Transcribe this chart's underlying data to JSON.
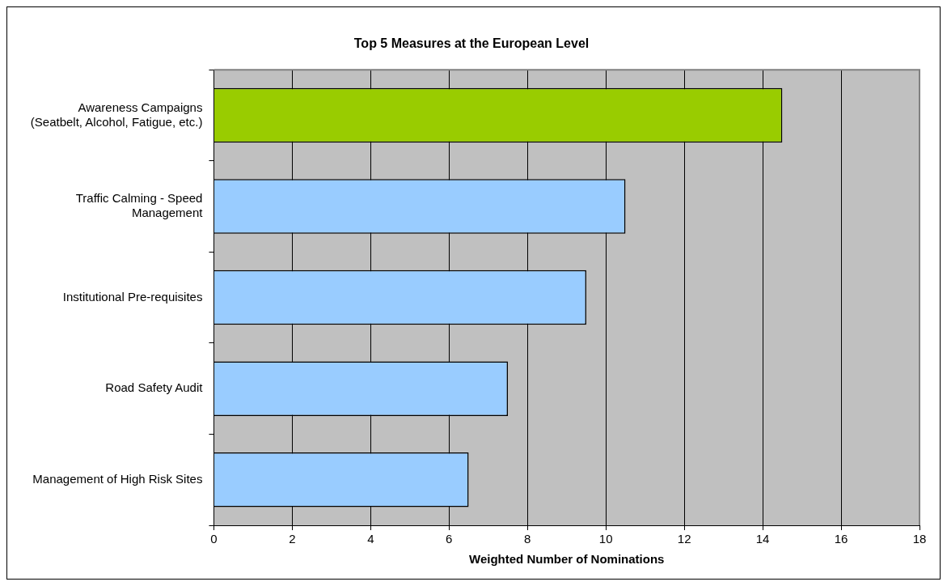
{
  "chart_data": {
    "type": "bar",
    "orientation": "horizontal",
    "title": "Top 5 Measures at the European Level",
    "xlabel": "Weighted Number of Nominations",
    "categories": [
      "Awareness Campaigns\n(Seatbelt, Alcohol, Fatigue, etc.)",
      "Traffic Calming - Speed\nManagement",
      "Institutional Pre-requisites",
      "Road Safety Audit",
      "Management of High Risk Sites"
    ],
    "values": [
      14.5,
      10.5,
      9.5,
      7.5,
      6.5
    ],
    "colors": [
      "#99cc00",
      "#99ccff",
      "#99ccff",
      "#99ccff",
      "#99ccff"
    ],
    "xlim": [
      0,
      18
    ],
    "xticks": [
      0,
      2,
      4,
      6,
      8,
      10,
      12,
      14,
      16,
      18
    ],
    "grid": "x",
    "legend": false
  }
}
